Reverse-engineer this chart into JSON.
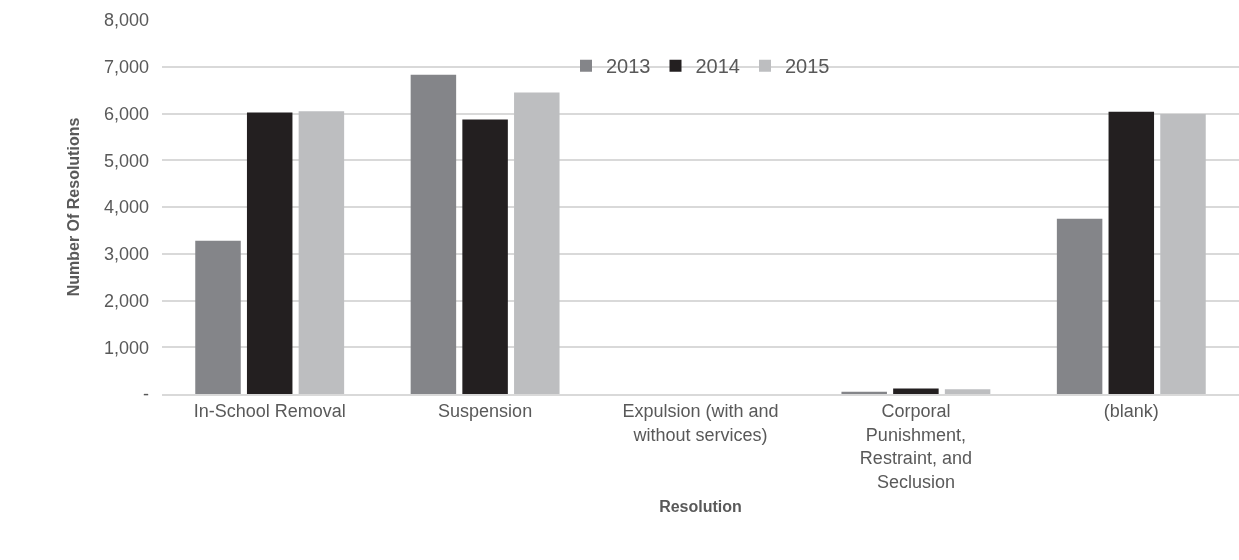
{
  "chart_data": {
    "type": "bar",
    "xlabel": "Resolution",
    "ylabel": "Number Of Resolutions",
    "categories": [
      "In-School Removal",
      "Suspension",
      "Expulsion (with and without services)",
      "Corporal Punishment, Restraint, and Seclusion",
      "(blank)"
    ],
    "series": [
      {
        "name": "2013",
        "color": "#848589",
        "values": [
          3280,
          6830,
          0,
          50,
          3750
        ]
      },
      {
        "name": "2014",
        "color": "#231f20",
        "values": [
          6020,
          5870,
          0,
          115,
          6040
        ]
      },
      {
        "name": "2015",
        "color": "#bdbec0",
        "values": [
          6050,
          6450,
          0,
          100,
          5990
        ]
      }
    ],
    "ylim": [
      0,
      8000
    ],
    "yticks": [
      {
        "value": 0,
        "label": "-"
      },
      {
        "value": 1000,
        "label": "1,000"
      },
      {
        "value": 2000,
        "label": "2,000"
      },
      {
        "value": 3000,
        "label": "3,000"
      },
      {
        "value": 4000,
        "label": "4,000"
      },
      {
        "value": 5000,
        "label": "5,000"
      },
      {
        "value": 6000,
        "label": "6,000"
      },
      {
        "value": 7000,
        "label": "7,000"
      },
      {
        "value": 8000,
        "label": "8,000"
      }
    ],
    "grid": "y",
    "legend": "top"
  }
}
